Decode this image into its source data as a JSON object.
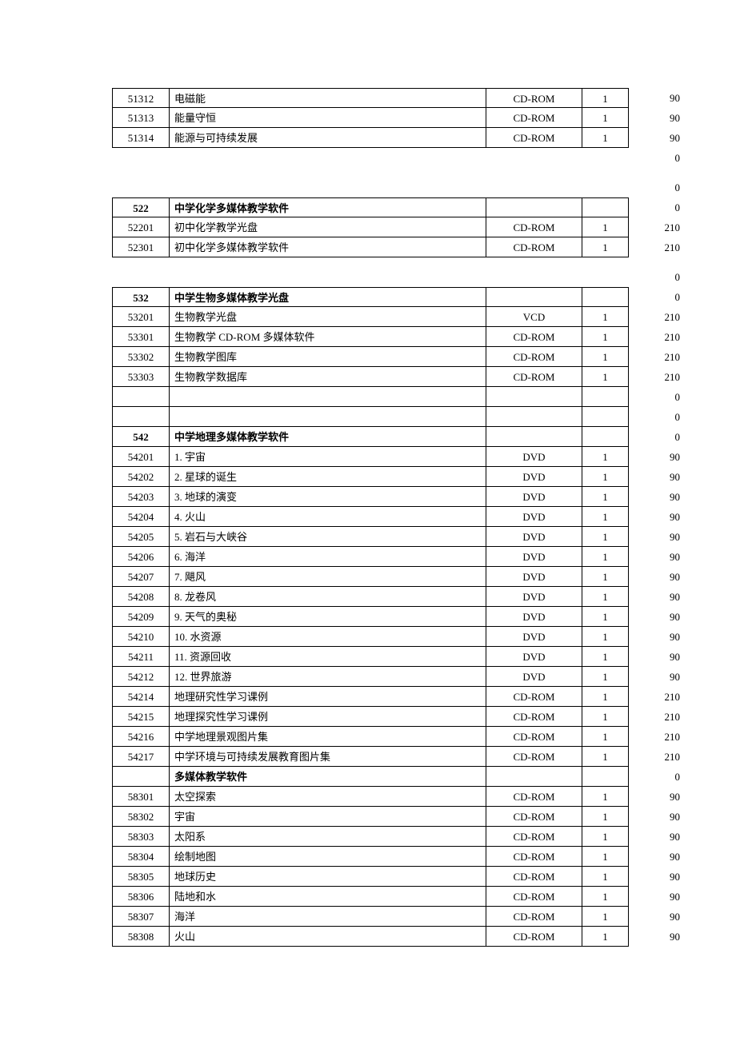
{
  "columns": {
    "code_width": 72,
    "name_width": 396,
    "type_width": 120,
    "qty_width": 58,
    "price_width": 70
  },
  "sections": [
    {
      "rows": [
        {
          "bordered": true,
          "first": true,
          "code": "51312",
          "name": "电磁能",
          "type": "CD-ROM",
          "qty": "1",
          "price": "90",
          "bold": false
        },
        {
          "bordered": true,
          "first": false,
          "code": "51313",
          "name": "能量守恒",
          "type": "CD-ROM",
          "qty": "1",
          "price": "90",
          "bold": false
        },
        {
          "bordered": true,
          "first": false,
          "code": "51314",
          "name": "能源与可持续发展",
          "type": "CD-ROM",
          "qty": "1",
          "price": "90",
          "bold": false
        },
        {
          "bordered": false,
          "first": false,
          "code": "",
          "name": "",
          "type": "",
          "qty": "",
          "price": "0",
          "bold": false
        }
      ]
    },
    {
      "rows": [
        {
          "bordered": false,
          "first": false,
          "code": "",
          "name": "",
          "type": "",
          "qty": "",
          "price": "0",
          "bold": false
        },
        {
          "bordered": true,
          "first": true,
          "code": "522",
          "name": "中学化学多媒体教学软件",
          "type": "",
          "qty": "",
          "price": "0",
          "bold": true
        },
        {
          "bordered": true,
          "first": false,
          "code": "52201",
          "name": "初中化学教学光盘",
          "type": "CD-ROM",
          "qty": "1",
          "price": "210",
          "bold": false
        },
        {
          "bordered": true,
          "first": false,
          "code": "52301",
          "name": "初中化学多媒体教学软件",
          "type": "CD-ROM",
          "qty": "1",
          "price": "210",
          "bold": false
        }
      ]
    },
    {
      "rows": [
        {
          "bordered": false,
          "first": false,
          "code": "",
          "name": "",
          "type": "",
          "qty": "",
          "price": "0",
          "bold": false
        },
        {
          "bordered": true,
          "first": true,
          "code": "532",
          "name": "中学生物多媒体教学光盘",
          "type": "",
          "qty": "",
          "price": "0",
          "bold": true
        },
        {
          "bordered": true,
          "first": false,
          "code": "53201",
          "name": "生物教学光盘",
          "type": "VCD",
          "qty": "1",
          "price": "210",
          "bold": false
        },
        {
          "bordered": true,
          "first": false,
          "code": "53301",
          "name": "生物教学 CD-ROM 多媒体软件",
          "type": "CD-ROM",
          "qty": "1",
          "price": "210",
          "bold": false
        },
        {
          "bordered": true,
          "first": false,
          "code": "53302",
          "name": "生物教学图库",
          "type": "CD-ROM",
          "qty": "1",
          "price": "210",
          "bold": false
        },
        {
          "bordered": true,
          "first": false,
          "code": "53303",
          "name": "生物教学数据库",
          "type": "CD-ROM",
          "qty": "1",
          "price": "210",
          "bold": false
        },
        {
          "bordered": true,
          "first": false,
          "code": "",
          "name": "",
          "type": "",
          "qty": "",
          "price": "0",
          "bold": false
        },
        {
          "bordered": true,
          "first": false,
          "code": "",
          "name": "",
          "type": "",
          "qty": "",
          "price": "0",
          "bold": false
        },
        {
          "bordered": true,
          "first": false,
          "code": "542",
          "name": "中学地理多媒体教学软件",
          "type": "",
          "qty": "",
          "price": "0",
          "bold": true
        },
        {
          "bordered": true,
          "first": false,
          "code": "54201",
          "name": "1. 宇宙",
          "type": "DVD",
          "qty": "1",
          "price": "90",
          "bold": false
        },
        {
          "bordered": true,
          "first": false,
          "code": "54202",
          "name": "2. 星球的诞生",
          "type": "DVD",
          "qty": "1",
          "price": "90",
          "bold": false
        },
        {
          "bordered": true,
          "first": false,
          "code": "54203",
          "name": "3. 地球的演变",
          "type": "DVD",
          "qty": "1",
          "price": "90",
          "bold": false
        },
        {
          "bordered": true,
          "first": false,
          "code": "54204",
          "name": "4. 火山",
          "type": "DVD",
          "qty": "1",
          "price": "90",
          "bold": false
        },
        {
          "bordered": true,
          "first": false,
          "code": "54205",
          "name": "5. 岩石与大峡谷",
          "type": "DVD",
          "qty": "1",
          "price": "90",
          "bold": false
        },
        {
          "bordered": true,
          "first": false,
          "code": "54206",
          "name": "6. 海洋",
          "type": "DVD",
          "qty": "1",
          "price": "90",
          "bold": false
        },
        {
          "bordered": true,
          "first": false,
          "code": "54207",
          "name": "7. 飓风",
          "type": "DVD",
          "qty": "1",
          "price": "90",
          "bold": false
        },
        {
          "bordered": true,
          "first": false,
          "code": "54208",
          "name": "8. 龙卷风",
          "type": "DVD",
          "qty": "1",
          "price": "90",
          "bold": false
        },
        {
          "bordered": true,
          "first": false,
          "code": "54209",
          "name": "9. 天气的奥秘",
          "type": "DVD",
          "qty": "1",
          "price": "90",
          "bold": false
        },
        {
          "bordered": true,
          "first": false,
          "code": "54210",
          "name": "10. 水资源",
          "type": "DVD",
          "qty": "1",
          "price": "90",
          "bold": false
        },
        {
          "bordered": true,
          "first": false,
          "code": "54211",
          "name": "11. 资源回收",
          "type": "DVD",
          "qty": "1",
          "price": "90",
          "bold": false
        },
        {
          "bordered": true,
          "first": false,
          "code": "54212",
          "name": "12. 世界旅游",
          "type": "DVD",
          "qty": "1",
          "price": "90",
          "bold": false
        },
        {
          "bordered": true,
          "first": false,
          "code": "54214",
          "name": "地理研究性学习课例",
          "type": "CD-ROM",
          "qty": "1",
          "price": "210",
          "bold": false
        },
        {
          "bordered": true,
          "first": false,
          "code": "54215",
          "name": "地理探究性学习课例",
          "type": "CD-ROM",
          "qty": "1",
          "price": "210",
          "bold": false
        },
        {
          "bordered": true,
          "first": false,
          "code": "54216",
          "name": "中学地理景观图片集",
          "type": "CD-ROM",
          "qty": "1",
          "price": "210",
          "bold": false
        },
        {
          "bordered": true,
          "first": false,
          "code": "54217",
          "name": "中学环境与可持续发展教育图片集",
          "type": "CD-ROM",
          "qty": "1",
          "price": "210",
          "bold": false
        },
        {
          "bordered": true,
          "first": false,
          "code": "",
          "name": "多媒体教学软件",
          "type": "",
          "qty": "",
          "price": "0",
          "bold": true
        },
        {
          "bordered": true,
          "first": false,
          "code": "58301",
          "name": "太空探索",
          "type": "CD-ROM",
          "qty": "1",
          "price": "90",
          "bold": false
        },
        {
          "bordered": true,
          "first": false,
          "code": "58302",
          "name": "宇宙",
          "type": "CD-ROM",
          "qty": "1",
          "price": "90",
          "bold": false
        },
        {
          "bordered": true,
          "first": false,
          "code": "58303",
          "name": "太阳系",
          "type": "CD-ROM",
          "qty": "1",
          "price": "90",
          "bold": false
        },
        {
          "bordered": true,
          "first": false,
          "code": "58304",
          "name": "绘制地图",
          "type": "CD-ROM",
          "qty": "1",
          "price": "90",
          "bold": false
        },
        {
          "bordered": true,
          "first": false,
          "code": "58305",
          "name": "地球历史",
          "type": "CD-ROM",
          "qty": "1",
          "price": "90",
          "bold": false
        },
        {
          "bordered": true,
          "first": false,
          "code": "58306",
          "name": "陆地和水",
          "type": "CD-ROM",
          "qty": "1",
          "price": "90",
          "bold": false
        },
        {
          "bordered": true,
          "first": false,
          "code": "58307",
          "name": "海洋",
          "type": "CD-ROM",
          "qty": "1",
          "price": "90",
          "bold": false
        },
        {
          "bordered": true,
          "first": false,
          "code": "58308",
          "name": "火山",
          "type": "CD-ROM",
          "qty": "1",
          "price": "90",
          "bold": false
        }
      ]
    }
  ]
}
